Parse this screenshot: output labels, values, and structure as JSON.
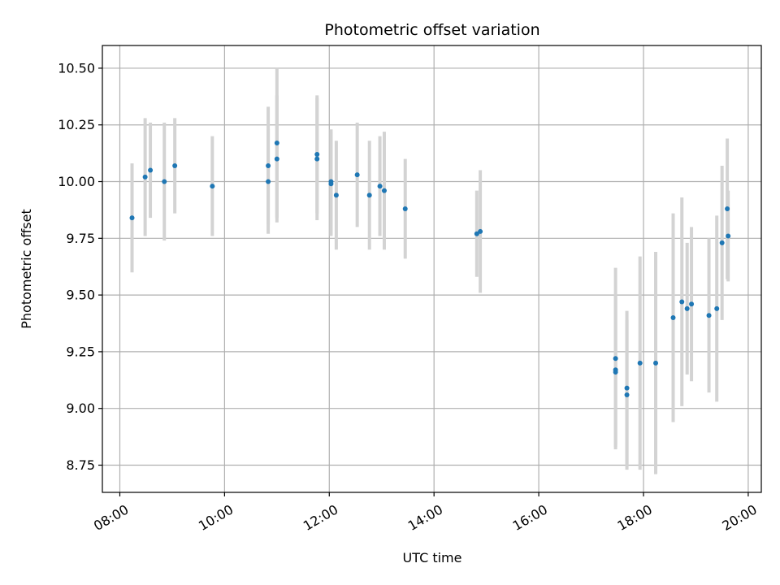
{
  "chart_data": {
    "type": "scatter",
    "title": "Photometric offset variation",
    "xlabel": "UTC time",
    "ylabel": "Photometric offset",
    "xlim": [
      "07:40",
      "20:15"
    ],
    "ylim": [
      8.63,
      10.6
    ],
    "grid": true,
    "x_ticks": [
      "08:00",
      "10:00",
      "12:00",
      "14:00",
      "16:00",
      "18:00",
      "20:00"
    ],
    "y_ticks": [
      "8.75",
      "9.00",
      "9.25",
      "9.50",
      "9.75",
      "10.00",
      "10.25",
      "10.50"
    ],
    "colors": {
      "point": "#1f77b4",
      "errorbar": "#d3d3d3",
      "grid": "#b0b0b0"
    },
    "points": [
      {
        "x": "08:14",
        "y": 9.84,
        "err": 0.24
      },
      {
        "x": "08:29",
        "y": 10.02,
        "err": 0.26
      },
      {
        "x": "08:35",
        "y": 10.05,
        "err": 0.21
      },
      {
        "x": "08:51",
        "y": 10.0,
        "err": 0.26
      },
      {
        "x": "09:03",
        "y": 10.07,
        "err": 0.21
      },
      {
        "x": "09:46",
        "y": 9.98,
        "err": 0.22
      },
      {
        "x": "10:50",
        "y": 10.07,
        "err": 0.26
      },
      {
        "x": "10:50",
        "y": 10.0,
        "err": 0.23
      },
      {
        "x": "11:00",
        "y": 10.17,
        "err": 0.33
      },
      {
        "x": "11:00",
        "y": 10.1,
        "err": 0.28
      },
      {
        "x": "11:46",
        "y": 10.12,
        "err": 0.26
      },
      {
        "x": "11:46",
        "y": 10.1,
        "err": 0.27
      },
      {
        "x": "12:02",
        "y": 10.0,
        "err": 0.23
      },
      {
        "x": "12:02",
        "y": 9.99,
        "err": 0.23
      },
      {
        "x": "12:08",
        "y": 9.94,
        "err": 0.24
      },
      {
        "x": "12:32",
        "y": 10.03,
        "err": 0.23
      },
      {
        "x": "12:46",
        "y": 9.94,
        "err": 0.24
      },
      {
        "x": "12:58",
        "y": 9.98,
        "err": 0.22
      },
      {
        "x": "13:03",
        "y": 9.96,
        "err": 0.26
      },
      {
        "x": "13:27",
        "y": 9.88,
        "err": 0.22
      },
      {
        "x": "14:49",
        "y": 9.77,
        "err": 0.19
      },
      {
        "x": "14:53",
        "y": 9.78,
        "err": 0.27
      },
      {
        "x": "17:28",
        "y": 9.22,
        "err": 0.4
      },
      {
        "x": "17:28",
        "y": 9.17,
        "err": 0.33
      },
      {
        "x": "17:28",
        "y": 9.16,
        "err": 0.33
      },
      {
        "x": "17:41",
        "y": 9.09,
        "err": 0.34
      },
      {
        "x": "17:41",
        "y": 9.06,
        "err": 0.33
      },
      {
        "x": "17:56",
        "y": 9.2,
        "err": 0.47
      },
      {
        "x": "18:14",
        "y": 9.2,
        "err": 0.49
      },
      {
        "x": "18:34",
        "y": 9.4,
        "err": 0.46
      },
      {
        "x": "18:44",
        "y": 9.47,
        "err": 0.46
      },
      {
        "x": "18:50",
        "y": 9.44,
        "err": 0.29
      },
      {
        "x": "18:55",
        "y": 9.46,
        "err": 0.34
      },
      {
        "x": "19:15",
        "y": 9.41,
        "err": 0.34
      },
      {
        "x": "19:24",
        "y": 9.44,
        "err": 0.41
      },
      {
        "x": "19:30",
        "y": 9.73,
        "err": 0.34
      },
      {
        "x": "19:36",
        "y": 9.88,
        "err": 0.31
      },
      {
        "x": "19:37",
        "y": 9.76,
        "err": 0.2
      }
    ]
  }
}
